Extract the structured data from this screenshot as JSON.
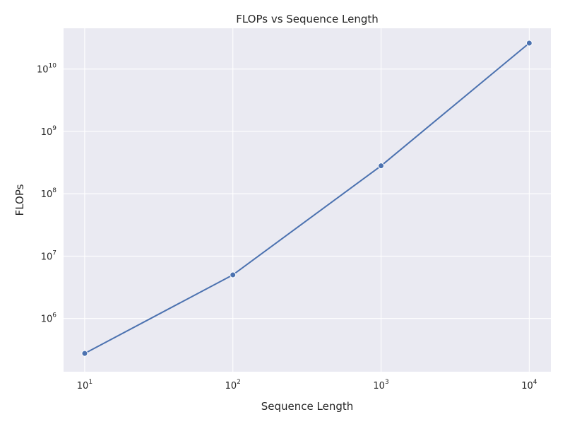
{
  "chart_data": {
    "type": "line",
    "title": "FLOPs vs Sequence Length",
    "xlabel": "Sequence Length",
    "ylabel": "FLOPs",
    "xscale": "log",
    "yscale": "log",
    "grid": true,
    "xlim": [
      7.2,
      14000
    ],
    "ylim": [
      140000,
      45000000000
    ],
    "xticks": [
      {
        "value": 10,
        "base": "10",
        "exp": "1"
      },
      {
        "value": 100,
        "base": "10",
        "exp": "2"
      },
      {
        "value": 1000,
        "base": "10",
        "exp": "3"
      },
      {
        "value": 10000,
        "base": "10",
        "exp": "4"
      }
    ],
    "yticks": [
      {
        "value": 1000000,
        "base": "10",
        "exp": "6"
      },
      {
        "value": 10000000,
        "base": "10",
        "exp": "7"
      },
      {
        "value": 100000000,
        "base": "10",
        "exp": "8"
      },
      {
        "value": 1000000000,
        "base": "10",
        "exp": "9"
      },
      {
        "value": 10000000000,
        "base": "10",
        "exp": "10"
      }
    ],
    "colors": {
      "background": "#eaeaf2",
      "series": "#4c72b0",
      "grid": "#ffffff"
    },
    "series": [
      {
        "x": [
          10,
          100,
          1000,
          10000
        ],
        "values": [
          275000,
          5000000,
          280000000,
          26000000000
        ]
      }
    ]
  }
}
